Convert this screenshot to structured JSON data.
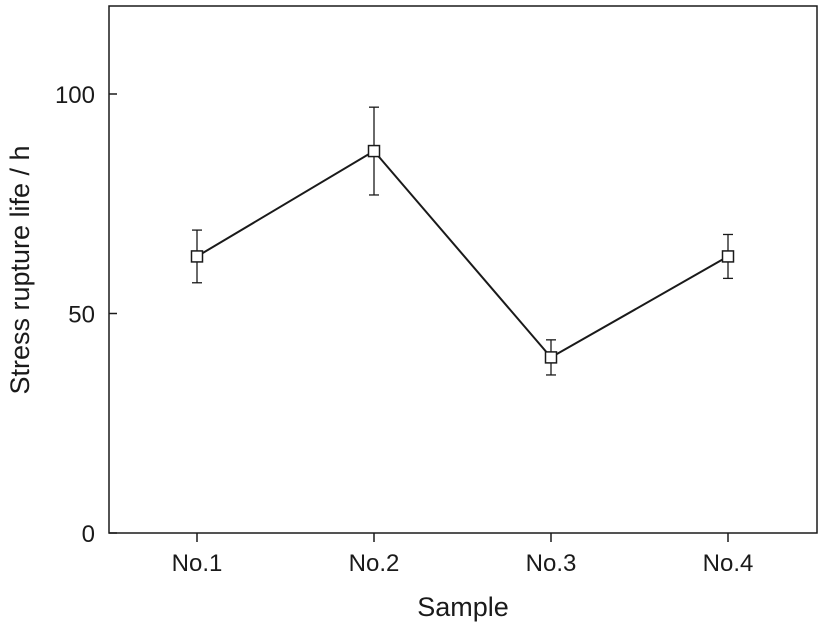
{
  "chart_data": {
    "type": "line",
    "title": "",
    "xlabel": "Sample",
    "ylabel": "Stress rupture life / h",
    "categories": [
      "No.1",
      "No.2",
      "No.3",
      "No.4"
    ],
    "series": [
      {
        "marker": "open-square",
        "values": [
          63,
          87,
          40,
          63
        ],
        "error_low": [
          57,
          77,
          36,
          58
        ],
        "error_high": [
          69,
          97,
          44,
          68
        ]
      }
    ],
    "ylim": [
      0,
      120
    ],
    "yticks": [
      0,
      50,
      100
    ],
    "y_tick_labels": [
      "0",
      "50",
      "100"
    ],
    "grid": false,
    "legend": "none",
    "colors": {
      "line": "#1a1a1a",
      "background": "#ffffff"
    }
  }
}
